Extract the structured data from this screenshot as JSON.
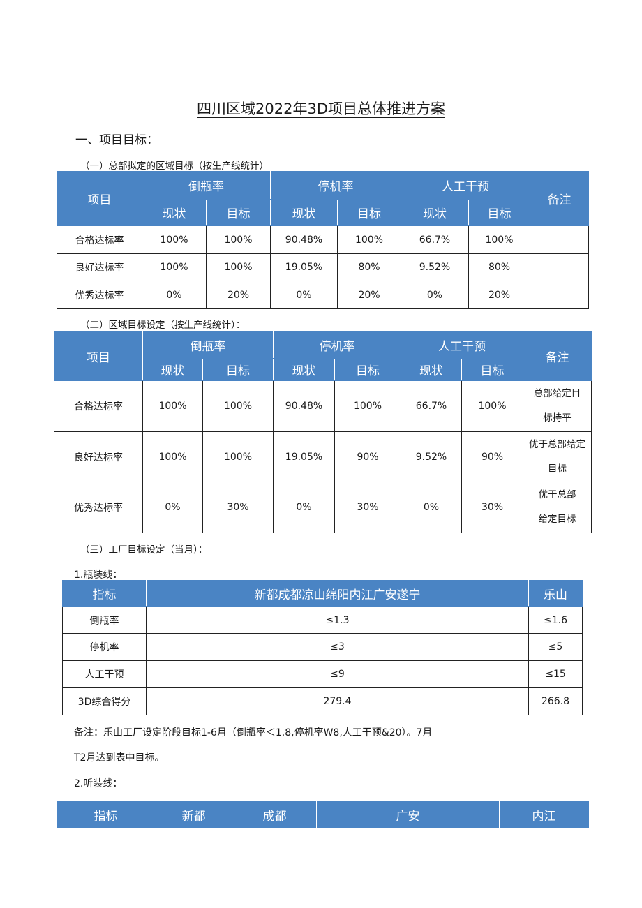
{
  "title": "四川区域2022年3D项目总体推进方案",
  "section1": "一、项目目标：",
  "t1": {
    "caption": "（一）总部拟定的区域目标（按生产线统计）",
    "h_item": "项目",
    "h_g1": "倒瓶率",
    "h_g2": "停机率",
    "h_g3": "人工干预",
    "h_remark": "备注",
    "h_cur": "现状",
    "h_tgt": "目标",
    "rows": [
      {
        "label": "合格达标率",
        "c": [
          "100%",
          "100%",
          "90.48%",
          "100%",
          "66.7%",
          "100%"
        ],
        "remark": ""
      },
      {
        "label": "良好达标率",
        "c": [
          "100%",
          "100%",
          "19.05%",
          "80%",
          "9.52%",
          "80%"
        ],
        "remark": ""
      },
      {
        "label": "优秀达标率",
        "c": [
          "0%",
          "20%",
          "0%",
          "20%",
          "0%",
          "20%"
        ],
        "remark": ""
      }
    ]
  },
  "t2": {
    "caption": "（二）区域目标设定（按生产线统计）：",
    "h_item": "项目",
    "h_g1": "倒瓶率",
    "h_g2": "停机率",
    "h_g3": "人工干预",
    "h_remark": "备注",
    "h_cur": "现状",
    "h_tgt": "目标",
    "rows": [
      {
        "label": "合格达标率",
        "c": [
          "100%",
          "100%",
          "90.48%",
          "100%",
          "66.7%",
          "100%"
        ],
        "remark1": "总部给定目",
        "remark2": "标持平"
      },
      {
        "label": "良好达标率",
        "c": [
          "100%",
          "100%",
          "19.05%",
          "90%",
          "9.52%",
          "90%"
        ],
        "remark1": "优于总部给定",
        "remark2": "目标"
      },
      {
        "label": "优秀达标率",
        "c": [
          "0%",
          "30%",
          "0%",
          "30%",
          "0%",
          "30%"
        ],
        "remark1": "优于总部",
        "remark2": "给定目标"
      }
    ]
  },
  "t3": {
    "caption": "（三）工厂目标设定（当月）：",
    "sub": "1.瓶装线：",
    "h_metric": "指标",
    "h_group": "新都成都凉山绵阳内江广安遂宁",
    "h_leshan": "乐山",
    "rows": [
      {
        "label": "倒瓶率",
        "group": "≤1.3",
        "leshan": "≤1.6"
      },
      {
        "label": "停机率",
        "group": "≤3",
        "leshan": "≤5"
      },
      {
        "label": "人工干预",
        "group": "≤9",
        "leshan": "≤15"
      },
      {
        "label": "3D综合得分",
        "group": "279.4",
        "leshan": "266.8"
      }
    ]
  },
  "note1": "备注：乐山工厂设定阶段目标1-6月（倒瓶率＜1.8,停机率W8,人工干预&20）。7月",
  "note2": "T2月达到表中目标。",
  "t4": {
    "sub": "2.听装线：",
    "h": [
      "指标",
      "新都",
      "成都",
      "广安",
      "内江"
    ]
  }
}
